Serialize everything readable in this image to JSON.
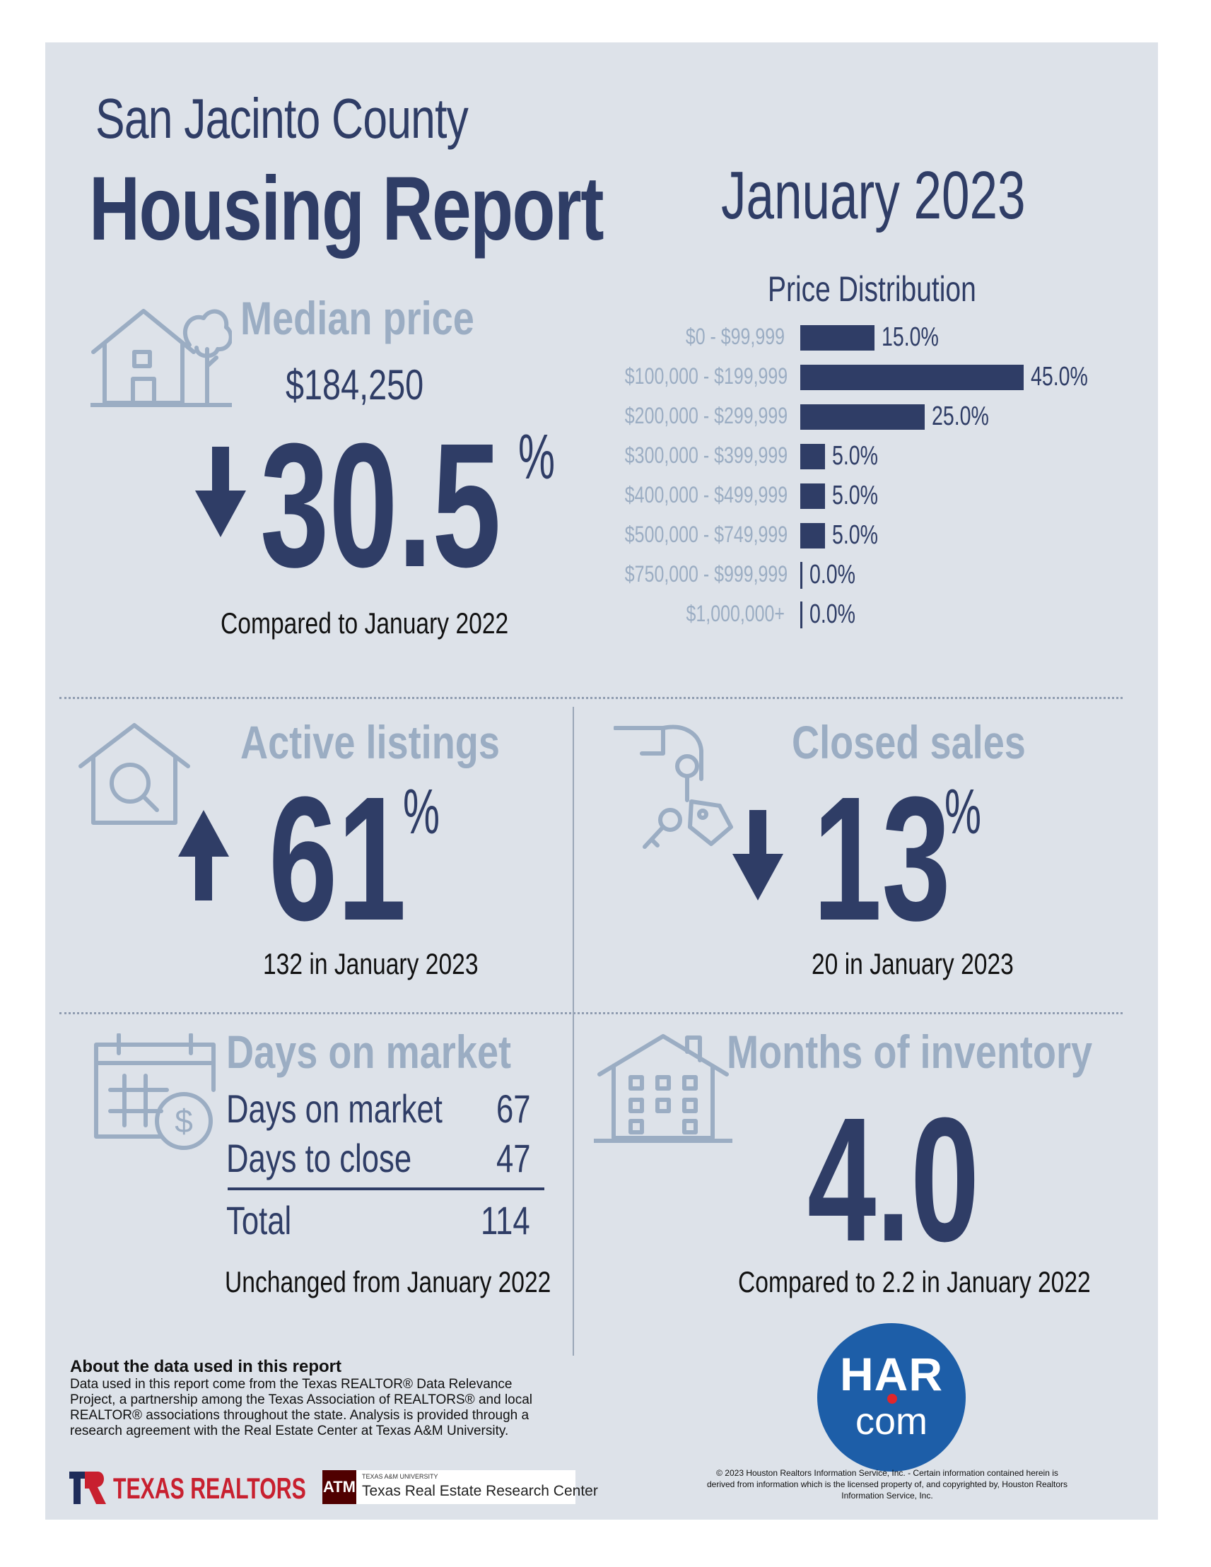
{
  "header": {
    "county": "San Jacinto County",
    "title": "Housing Report",
    "month": "January 2023"
  },
  "median_price": {
    "heading": "Median price",
    "value": "$184,250",
    "change": "30.5",
    "change_unit": "%",
    "direction": "down",
    "comparison": "Compared to January 2022"
  },
  "price_distribution": {
    "heading": "Price Distribution",
    "rows": [
      {
        "label": "$0 - $99,999",
        "value": "15.0%"
      },
      {
        "label": "$100,000 - $199,999",
        "value": "45.0%"
      },
      {
        "label": "$200,000 - $299,999",
        "value": "25.0%"
      },
      {
        "label": "$300,000 - $399,999",
        "value": "5.0%"
      },
      {
        "label": "$400,000 - $499,999",
        "value": "5.0%"
      },
      {
        "label": "$500,000 - $749,999",
        "value": "5.0%"
      },
      {
        "label": "$750,000 - $999,999",
        "value": "0.0%"
      },
      {
        "label": "$1,000,000+",
        "value": "0.0%"
      }
    ]
  },
  "chart_data": {
    "type": "bar",
    "title": "Price Distribution",
    "categories": [
      "$0 - $99,999",
      "$100,000 - $199,999",
      "$200,000 - $299,999",
      "$300,000 - $399,999",
      "$400,000 - $499,999",
      "$500,000 - $749,999",
      "$750,000 - $999,999",
      "$1,000,000+"
    ],
    "values": [
      15.0,
      45.0,
      25.0,
      5.0,
      5.0,
      5.0,
      0.0,
      0.0
    ],
    "orientation": "horizontal",
    "color": "#2f3d66"
  },
  "active_listings": {
    "heading": "Active listings",
    "change": "61",
    "change_unit": "%",
    "direction": "up",
    "detail": "132 in January 2023"
  },
  "closed_sales": {
    "heading": "Closed sales",
    "change": "13",
    "change_unit": "%",
    "direction": "down",
    "detail": "20 in January 2023"
  },
  "days_on_market": {
    "heading": "Days on market",
    "rows": [
      {
        "label": "Days on market",
        "value": "67"
      },
      {
        "label": "Days to close",
        "value": "47"
      }
    ],
    "total_label": "Total",
    "total_value": "114",
    "comparison": "Unchanged from January 2022"
  },
  "months_inventory": {
    "heading": "Months of inventory",
    "value": "4.0",
    "comparison": "Compared to 2.2 in January 2022"
  },
  "about": {
    "title": "About the data used in this report",
    "body": "Data used in this report come from the Texas REALTOR® Data Relevance Project, a partnership among the Texas Association of REALTORS® and local REALTOR® associations throughout the state. Analysis is provided through a research agreement with the Real Estate Center at Texas A&M University."
  },
  "logos": {
    "texas_realtors": "TEXAS REALTORS",
    "tamu_small": "TEXAS A&M UNIVERSITY",
    "tamu_center": "Texas Real Estate Research Center",
    "har_top": "HAR",
    "har_bottom": "com"
  },
  "copyright": "© 2023 Houston Realtors Information Service, Inc. - Certain information contained herein is derived from information which is the licensed property of, and copyrighted by, Houston Realtors Information Service, Inc.",
  "colors": {
    "navy": "#2f3d66",
    "pale_blue": "#9badc3",
    "background": "#dde2e9",
    "har_blue": "#1d5ea8",
    "har_dot": "#e0262b",
    "texas_red": "#c8202f"
  }
}
